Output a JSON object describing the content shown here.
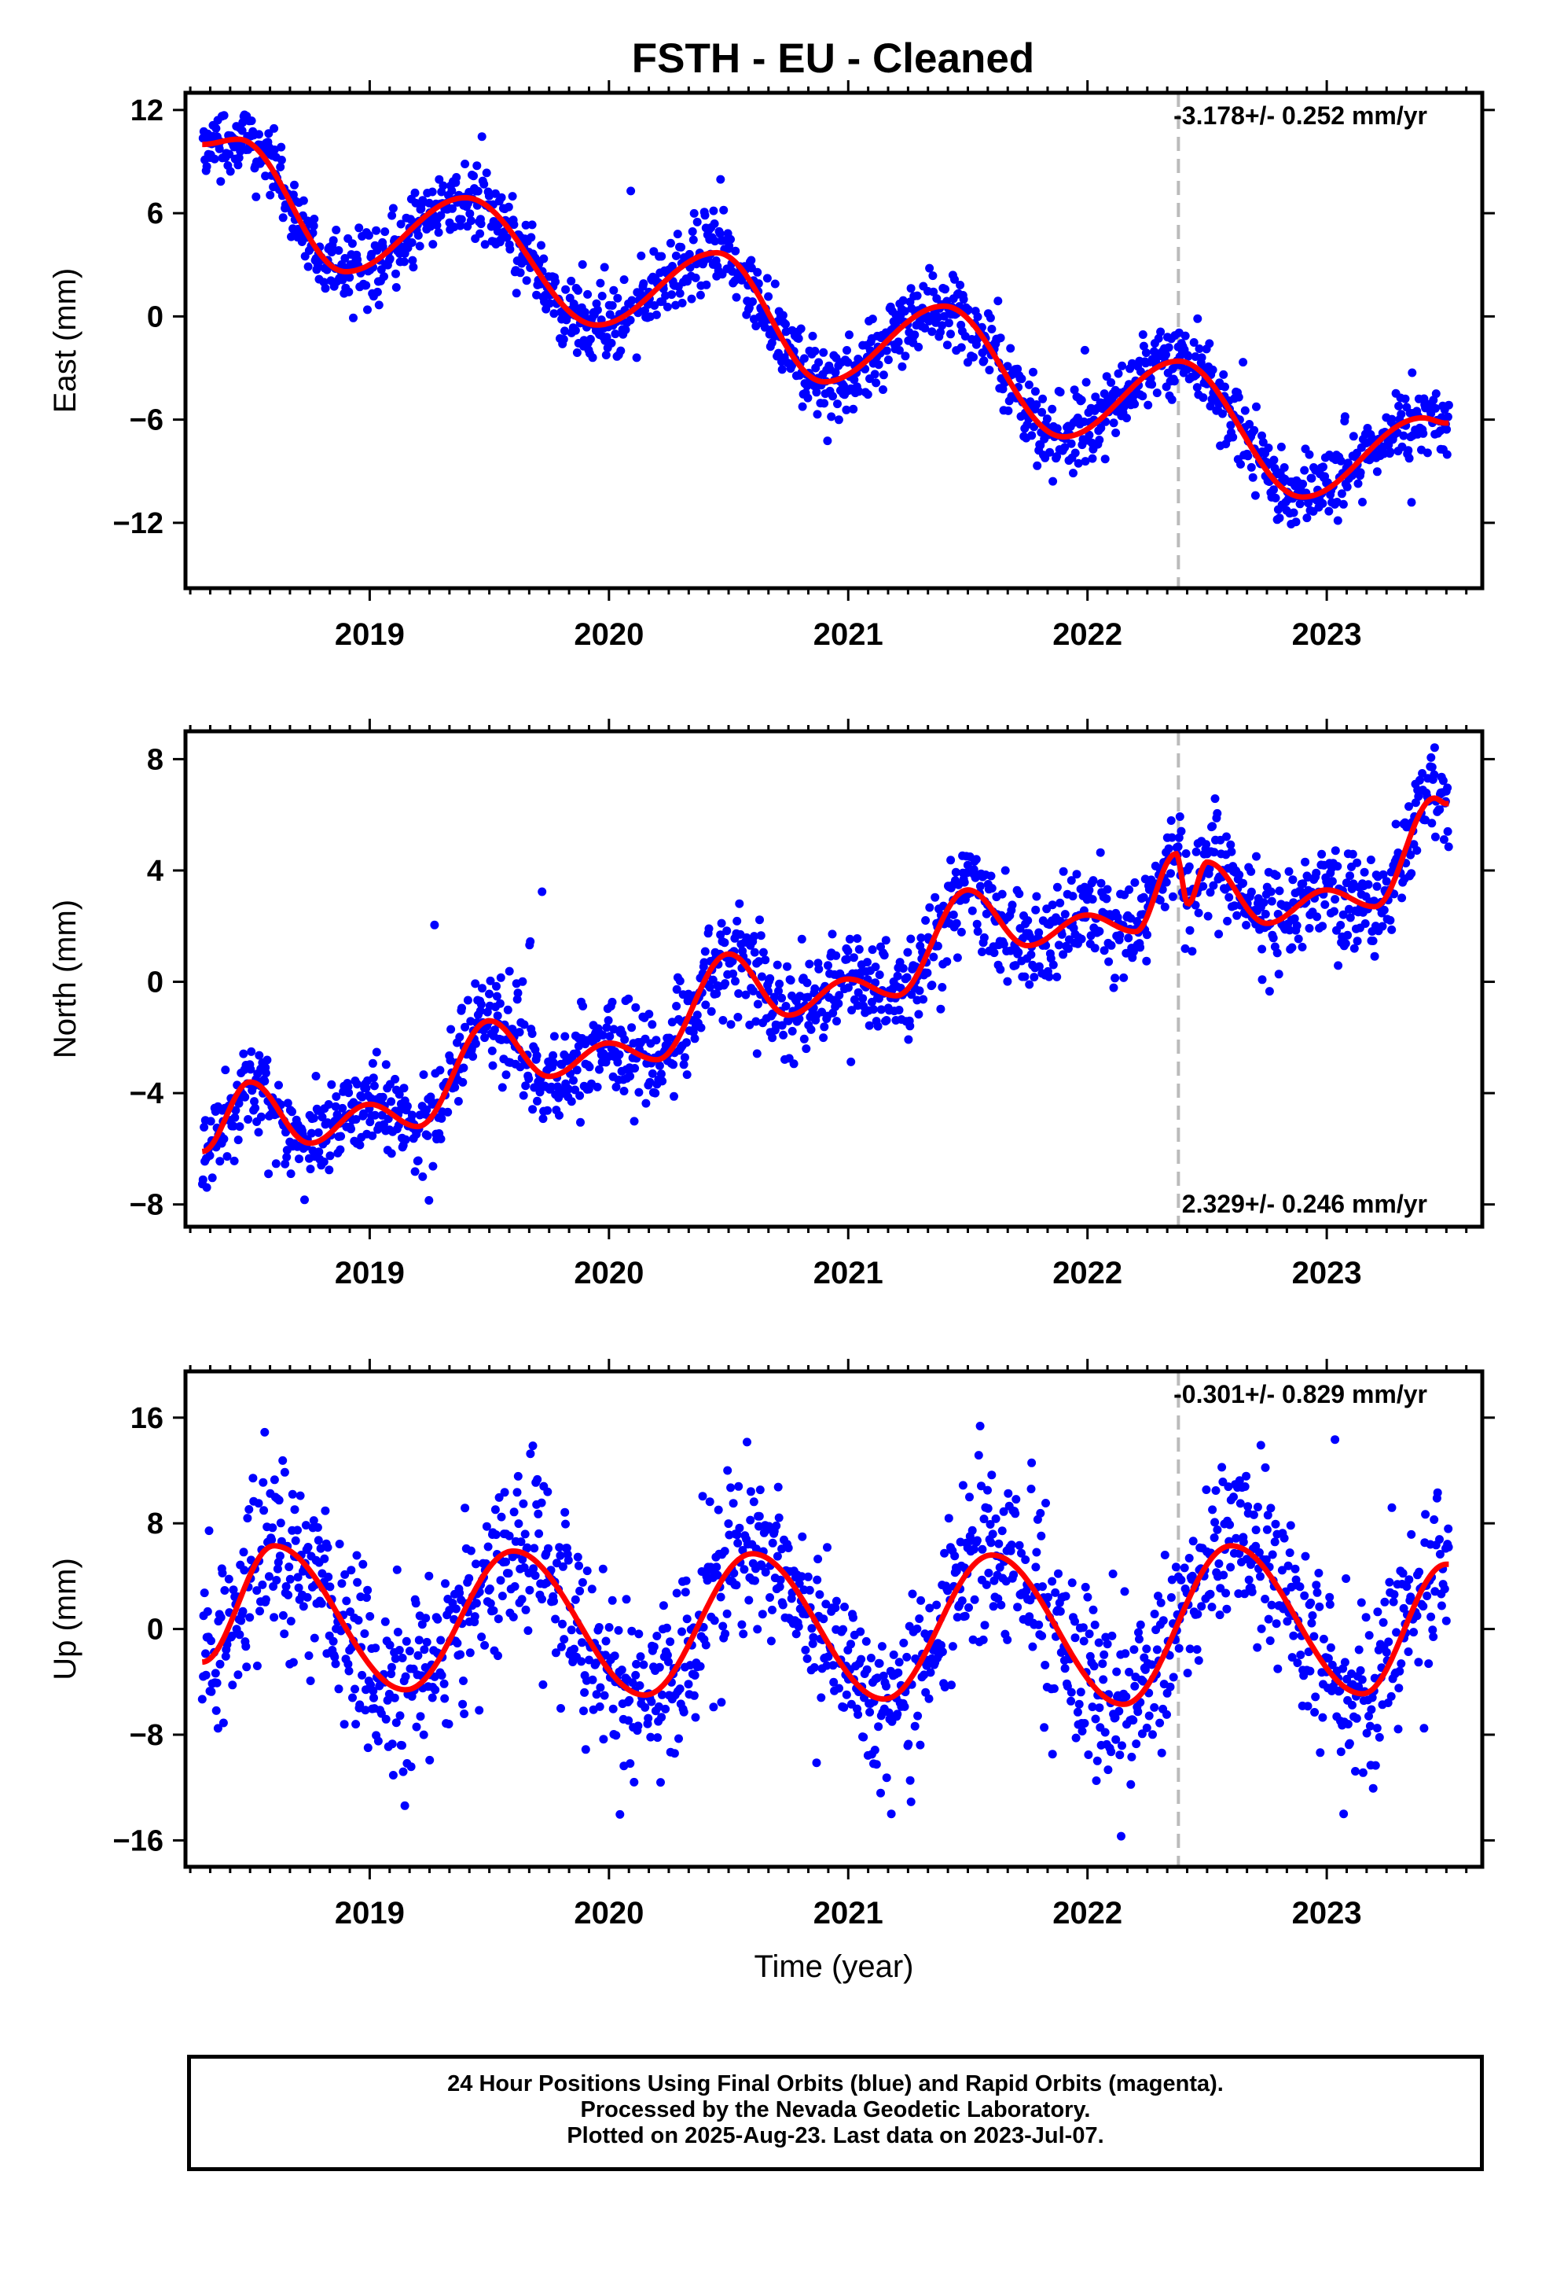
{
  "title": "FSTH  - EU - Cleaned",
  "footer": {
    "line1": "24 Hour Positions Using Final Orbits (blue) and Rapid Orbits (magenta).",
    "line2": "Processed by the Nevada Geodetic Laboratory.",
    "line3": "Plotted on 2025-Aug-23. Last data on 2023-Jul-07."
  },
  "colors": {
    "data_points": "#0000ff",
    "fit_line": "#ff0000",
    "event_line": "#bbbbbb",
    "frame": "#000000"
  },
  "chart_data": [
    {
      "type": "scatter",
      "ylabel": "East (mm)",
      "xlabel": "",
      "rate": "-3.178+/- 0.252 mm/yr",
      "rate_position": "top-right",
      "x_ticks": [
        2019,
        2020,
        2021,
        2022,
        2023
      ],
      "xlim": [
        2018.23,
        2023.65
      ],
      "y_ticks": [
        -12,
        -6,
        0,
        6,
        12
      ],
      "ylim": [
        -15.8,
        13.0
      ],
      "event_lines": [
        2022.38
      ],
      "data_range": [
        2018.3,
        2023.51
      ],
      "model": {
        "offset": 0.0,
        "trend": -3.178,
        "annual_cos": 2.7,
        "annual_sin": 2.8,
        "semi_cos": 0.6,
        "semi_sin": 0.2,
        "ref_year": 2021.0,
        "noise": 1.1
      },
      "fit_keypoints": [
        [
          2018.3,
          10.0
        ],
        [
          2018.45,
          10.3
        ],
        [
          2018.9,
          2.6
        ],
        [
          2019.4,
          6.9
        ],
        [
          2019.95,
          -0.5
        ],
        [
          2020.45,
          3.7
        ],
        [
          2020.9,
          -3.8
        ],
        [
          2021.4,
          0.6
        ],
        [
          2021.9,
          -7.0
        ],
        [
          2022.38,
          -2.6
        ],
        [
          2022.9,
          -10.5
        ],
        [
          2023.4,
          -5.9
        ],
        [
          2023.5,
          -6.2
        ]
      ]
    },
    {
      "type": "scatter",
      "ylabel": "North (mm)",
      "xlabel": "",
      "rate": "2.329+/- 0.246 mm/yr",
      "rate_position": "bottom-right",
      "x_ticks": [
        2019,
        2020,
        2021,
        2022,
        2023
      ],
      "xlim": [
        2018.23,
        2023.65
      ],
      "y_ticks": [
        -8,
        -4,
        0,
        4,
        8
      ],
      "ylim": [
        -8.8,
        9.0
      ],
      "event_lines": [
        2022.38
      ],
      "data_range": [
        2018.3,
        2023.51
      ],
      "model": {
        "offset": 0.0,
        "trend": 2.329,
        "annual_cos": 0.6,
        "annual_sin": -0.7,
        "semi_cos": 0.5,
        "semi_sin": 0.4,
        "ref_year": 2021.0,
        "noise": 0.9
      },
      "fit_keypoints": [
        [
          2018.3,
          -6.1
        ],
        [
          2018.5,
          -3.6
        ],
        [
          2018.75,
          -5.8
        ],
        [
          2019.0,
          -4.4
        ],
        [
          2019.2,
          -5.2
        ],
        [
          2019.5,
          -1.4
        ],
        [
          2019.75,
          -3.4
        ],
        [
          2020.0,
          -2.2
        ],
        [
          2020.2,
          -2.8
        ],
        [
          2020.5,
          1.0
        ],
        [
          2020.75,
          -1.2
        ],
        [
          2021.0,
          0.1
        ],
        [
          2021.2,
          -0.5
        ],
        [
          2021.5,
          3.3
        ],
        [
          2021.75,
          1.3
        ],
        [
          2022.0,
          2.4
        ],
        [
          2022.2,
          1.8
        ],
        [
          2022.37,
          4.6
        ],
        [
          2022.42,
          2.8
        ],
        [
          2022.5,
          4.3
        ],
        [
          2022.75,
          2.1
        ],
        [
          2023.0,
          3.3
        ],
        [
          2023.2,
          2.7
        ],
        [
          2023.45,
          6.6
        ],
        [
          2023.5,
          6.4
        ]
      ]
    },
    {
      "type": "scatter",
      "ylabel": "Up (mm)",
      "xlabel": "Time (year)",
      "rate": "-0.301+/- 0.829 mm/yr",
      "rate_position": "top-right",
      "x_ticks": [
        2019,
        2020,
        2021,
        2022,
        2023
      ],
      "xlim": [
        2018.23,
        2023.65
      ],
      "y_ticks": [
        -16,
        -8,
        0,
        8,
        16
      ],
      "ylim": [
        -18.0,
        19.5
      ],
      "event_lines": [
        2022.38
      ],
      "data_range": [
        2018.3,
        2023.51
      ],
      "model": {
        "offset": 0.0,
        "trend": -0.301,
        "annual_cos": -5.5,
        "annual_sin": -0.5,
        "semi_cos": 0.3,
        "semi_sin": 0.2,
        "ref_year": 2021.0,
        "noise": 3.3
      },
      "fit_keypoints": [
        [
          2018.3,
          -2.5
        ],
        [
          2018.6,
          6.3
        ],
        [
          2019.15,
          -4.6
        ],
        [
          2019.6,
          5.9
        ],
        [
          2020.15,
          -5.0
        ],
        [
          2020.6,
          5.7
        ],
        [
          2021.15,
          -5.3
        ],
        [
          2021.6,
          5.6
        ],
        [
          2022.15,
          -5.7
        ],
        [
          2022.6,
          6.3
        ],
        [
          2023.15,
          -4.9
        ],
        [
          2023.5,
          4.9
        ]
      ]
    }
  ]
}
